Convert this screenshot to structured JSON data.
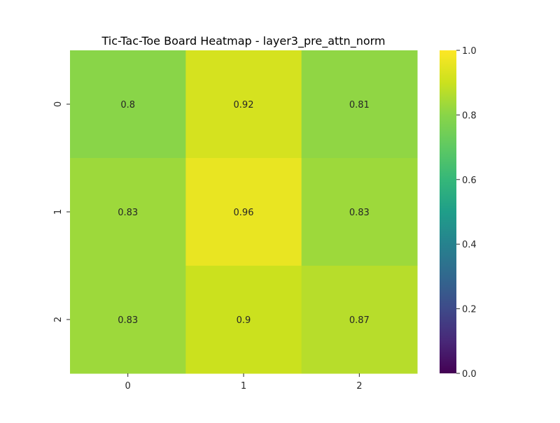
{
  "chart_data": {
    "type": "heatmap",
    "title": "Tic-Tac-Toe Board Heatmap - layer3_pre_attn_norm",
    "x_categories": [
      "0",
      "1",
      "2"
    ],
    "y_categories": [
      "0",
      "1",
      "2"
    ],
    "values": [
      [
        0.8,
        0.92,
        0.81
      ],
      [
        0.83,
        0.96,
        0.83
      ],
      [
        0.83,
        0.9,
        0.87
      ]
    ],
    "cell_labels": [
      [
        "0.8",
        "0.92",
        "0.81"
      ],
      [
        "0.83",
        "0.96",
        "0.83"
      ],
      [
        "0.83",
        "0.9",
        "0.87"
      ]
    ],
    "colormap": "viridis",
    "vmin": 0.0,
    "vmax": 1.0,
    "colorbar_ticks": [
      "0.0",
      "0.2",
      "0.4",
      "0.6",
      "0.8",
      "1.0"
    ],
    "xlabel": "",
    "ylabel": "",
    "grid": false,
    "legend": "colorbar-right"
  }
}
